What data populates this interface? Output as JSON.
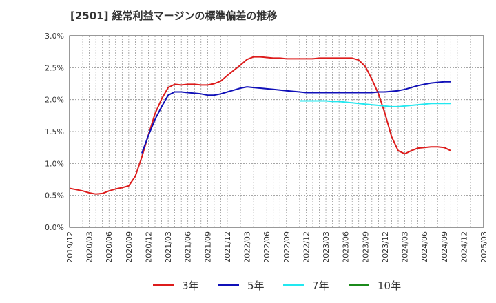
{
  "chart_data": {
    "type": "line",
    "title": "[2501]  経常利益マージンの標準偏差の推移",
    "xlabel": "",
    "ylabel": "",
    "ylim": [
      0,
      3.0
    ],
    "y_ticks": [
      "0.0%",
      "0.5%",
      "1.0%",
      "1.5%",
      "2.0%",
      "2.5%",
      "3.0%"
    ],
    "x_ticks": [
      "2019/12",
      "2020/03",
      "2020/06",
      "2020/09",
      "2020/12",
      "2021/03",
      "2021/06",
      "2021/09",
      "2021/12",
      "2022/03",
      "2022/06",
      "2022/09",
      "2022/12",
      "2023/03",
      "2023/06",
      "2023/09",
      "2023/12",
      "2024/03",
      "2024/06",
      "2024/09",
      "2024/12",
      "2025/03"
    ],
    "grid": true,
    "legend_position": "bottom",
    "series": [
      {
        "name": "3年",
        "color": "#dd1c1c",
        "points": [
          [
            0,
            0.61
          ],
          [
            1,
            0.59
          ],
          [
            2,
            0.57
          ],
          [
            3,
            0.54
          ],
          [
            4,
            0.52
          ],
          [
            5,
            0.53
          ],
          [
            6,
            0.57
          ],
          [
            7,
            0.6
          ],
          [
            8,
            0.62
          ],
          [
            9,
            0.65
          ],
          [
            10,
            0.8
          ],
          [
            11,
            1.1
          ],
          [
            12,
            1.45
          ],
          [
            13,
            1.78
          ],
          [
            14,
            2.01
          ],
          [
            15,
            2.19
          ],
          [
            16,
            2.24
          ],
          [
            17,
            2.23
          ],
          [
            18,
            2.24
          ],
          [
            19,
            2.24
          ],
          [
            20,
            2.23
          ],
          [
            21,
            2.23
          ],
          [
            22,
            2.25
          ],
          [
            23,
            2.29
          ],
          [
            24,
            2.38
          ],
          [
            25,
            2.46
          ],
          [
            26,
            2.54
          ],
          [
            27,
            2.63
          ],
          [
            28,
            2.67
          ],
          [
            29,
            2.67
          ],
          [
            30,
            2.66
          ],
          [
            31,
            2.65
          ],
          [
            32,
            2.65
          ],
          [
            33,
            2.64
          ],
          [
            34,
            2.64
          ],
          [
            35,
            2.64
          ],
          [
            36,
            2.64
          ],
          [
            37,
            2.64
          ],
          [
            38,
            2.65
          ],
          [
            39,
            2.65
          ],
          [
            40,
            2.65
          ],
          [
            41,
            2.65
          ],
          [
            42,
            2.65
          ],
          [
            43,
            2.65
          ],
          [
            44,
            2.62
          ],
          [
            45,
            2.52
          ],
          [
            46,
            2.32
          ],
          [
            47,
            2.09
          ],
          [
            48,
            1.78
          ],
          [
            49,
            1.42
          ],
          [
            50,
            1.2
          ],
          [
            51,
            1.15
          ],
          [
            52,
            1.2
          ],
          [
            53,
            1.24
          ],
          [
            54,
            1.25
          ],
          [
            55,
            1.26
          ],
          [
            56,
            1.26
          ],
          [
            57,
            1.25
          ],
          [
            58,
            1.2
          ]
        ]
      },
      {
        "name": "5年",
        "color": "#1010b8",
        "points": [
          [
            11,
            1.16
          ],
          [
            12,
            1.44
          ],
          [
            13,
            1.69
          ],
          [
            14,
            1.89
          ],
          [
            15,
            2.07
          ],
          [
            16,
            2.12
          ],
          [
            17,
            2.12
          ],
          [
            18,
            2.11
          ],
          [
            19,
            2.1
          ],
          [
            20,
            2.09
          ],
          [
            21,
            2.07
          ],
          [
            22,
            2.07
          ],
          [
            23,
            2.09
          ],
          [
            24,
            2.12
          ],
          [
            25,
            2.15
          ],
          [
            26,
            2.18
          ],
          [
            27,
            2.2
          ],
          [
            28,
            2.19
          ],
          [
            29,
            2.18
          ],
          [
            30,
            2.17
          ],
          [
            31,
            2.16
          ],
          [
            32,
            2.15
          ],
          [
            33,
            2.14
          ],
          [
            34,
            2.13
          ],
          [
            35,
            2.12
          ],
          [
            36,
            2.11
          ],
          [
            37,
            2.11
          ],
          [
            38,
            2.11
          ],
          [
            39,
            2.11
          ],
          [
            40,
            2.11
          ],
          [
            41,
            2.11
          ],
          [
            42,
            2.11
          ],
          [
            43,
            2.11
          ],
          [
            44,
            2.11
          ],
          [
            45,
            2.11
          ],
          [
            46,
            2.11
          ],
          [
            47,
            2.12
          ],
          [
            48,
            2.12
          ],
          [
            49,
            2.13
          ],
          [
            50,
            2.14
          ],
          [
            51,
            2.16
          ],
          [
            52,
            2.19
          ],
          [
            53,
            2.22
          ],
          [
            54,
            2.24
          ],
          [
            55,
            2.26
          ],
          [
            56,
            2.27
          ],
          [
            57,
            2.28
          ],
          [
            58,
            2.28
          ]
        ]
      },
      {
        "name": "7年",
        "color": "#22e8f0",
        "points": [
          [
            35,
            1.98
          ],
          [
            36,
            1.98
          ],
          [
            37,
            1.98
          ],
          [
            38,
            1.98
          ],
          [
            39,
            1.98
          ],
          [
            40,
            1.97
          ],
          [
            41,
            1.97
          ],
          [
            42,
            1.96
          ],
          [
            43,
            1.95
          ],
          [
            44,
            1.94
          ],
          [
            45,
            1.93
          ],
          [
            46,
            1.92
          ],
          [
            47,
            1.91
          ],
          [
            48,
            1.9
          ],
          [
            49,
            1.89
          ],
          [
            50,
            1.89
          ],
          [
            51,
            1.9
          ],
          [
            52,
            1.91
          ],
          [
            53,
            1.92
          ],
          [
            54,
            1.93
          ],
          [
            55,
            1.94
          ],
          [
            56,
            1.94
          ],
          [
            57,
            1.94
          ],
          [
            58,
            1.94
          ]
        ]
      },
      {
        "name": "10年",
        "color": "#1b8a1b",
        "points": []
      }
    ]
  }
}
